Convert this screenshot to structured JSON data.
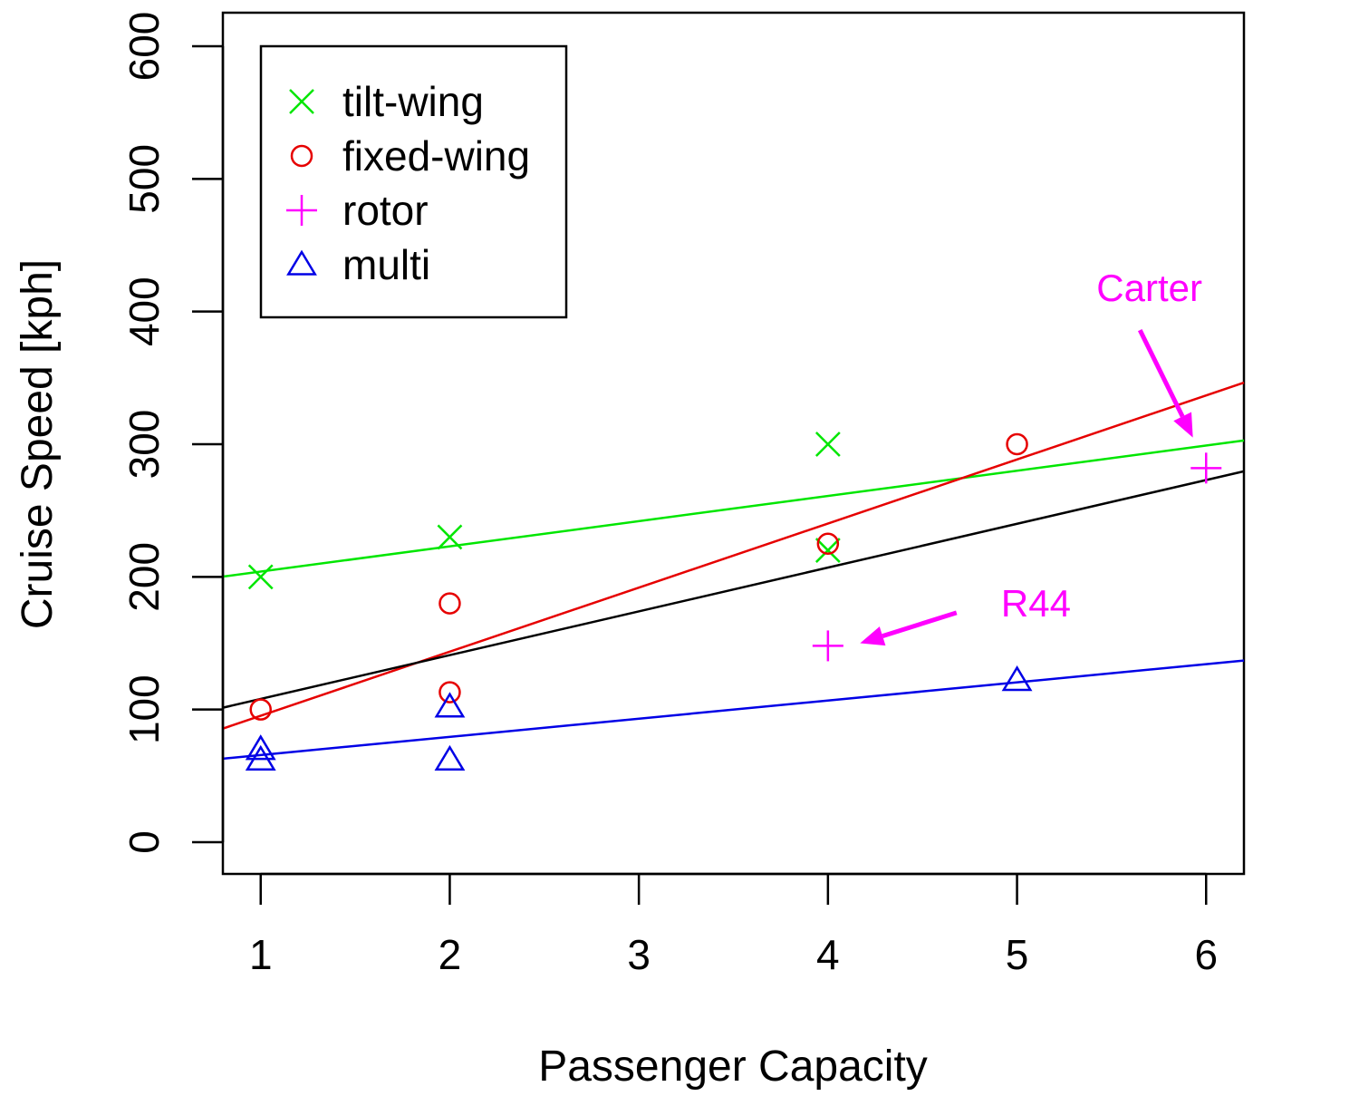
{
  "chart_data": {
    "type": "scatter",
    "title": "",
    "xlabel": "Passenger Capacity",
    "ylabel": "Cruise Speed [kph]",
    "xlim": [
      0.8,
      6.2
    ],
    "ylim": [
      -25,
      600
    ],
    "x_ticks": [
      1,
      2,
      3,
      4,
      5,
      6
    ],
    "y_ticks": [
      0,
      100,
      200,
      300,
      400,
      500,
      600
    ],
    "grid": false,
    "legend_position": "top-left",
    "series": [
      {
        "name": "tilt-wing",
        "color": "#00e600",
        "marker": "x",
        "points": [
          [
            1,
            200
          ],
          [
            2,
            230
          ],
          [
            4,
            300
          ],
          [
            4,
            220
          ]
        ],
        "fit": {
          "intercept": 185,
          "slope": 19
        }
      },
      {
        "name": "fixed-wing",
        "color": "#e60000",
        "marker": "circle",
        "points": [
          [
            1,
            100
          ],
          [
            2,
            180
          ],
          [
            2,
            113
          ],
          [
            4,
            225
          ],
          [
            5,
            300
          ]
        ],
        "fit": {
          "intercept": 47,
          "slope": 48.3
        }
      },
      {
        "name": "rotor",
        "color": "#ff00ff",
        "marker": "plus",
        "points": [
          [
            4,
            148
          ],
          [
            6,
            282
          ]
        ]
      },
      {
        "name": "multi",
        "color": "#0000e6",
        "marker": "triangle",
        "points": [
          [
            1,
            70
          ],
          [
            1,
            62
          ],
          [
            2,
            102
          ],
          [
            2,
            62
          ],
          [
            5,
            122
          ]
        ],
        "fit": {
          "intercept": 52,
          "slope": 13.7
        }
      }
    ],
    "overall_fit": {
      "color": "#000000",
      "intercept": 75,
      "slope": 33
    },
    "annotations": [
      {
        "label": "Carter",
        "color": "#ff00ff",
        "text_at": [
          5.7,
          408
        ],
        "arrow_from": [
          5.65,
          386
        ],
        "arrow_to": [
          5.93,
          305
        ]
      },
      {
        "label": "R44",
        "color": "#ff00ff",
        "text_at": [
          5.1,
          170
        ],
        "arrow_from": [
          4.68,
          173
        ],
        "arrow_to": [
          4.17,
          150
        ]
      }
    ]
  }
}
